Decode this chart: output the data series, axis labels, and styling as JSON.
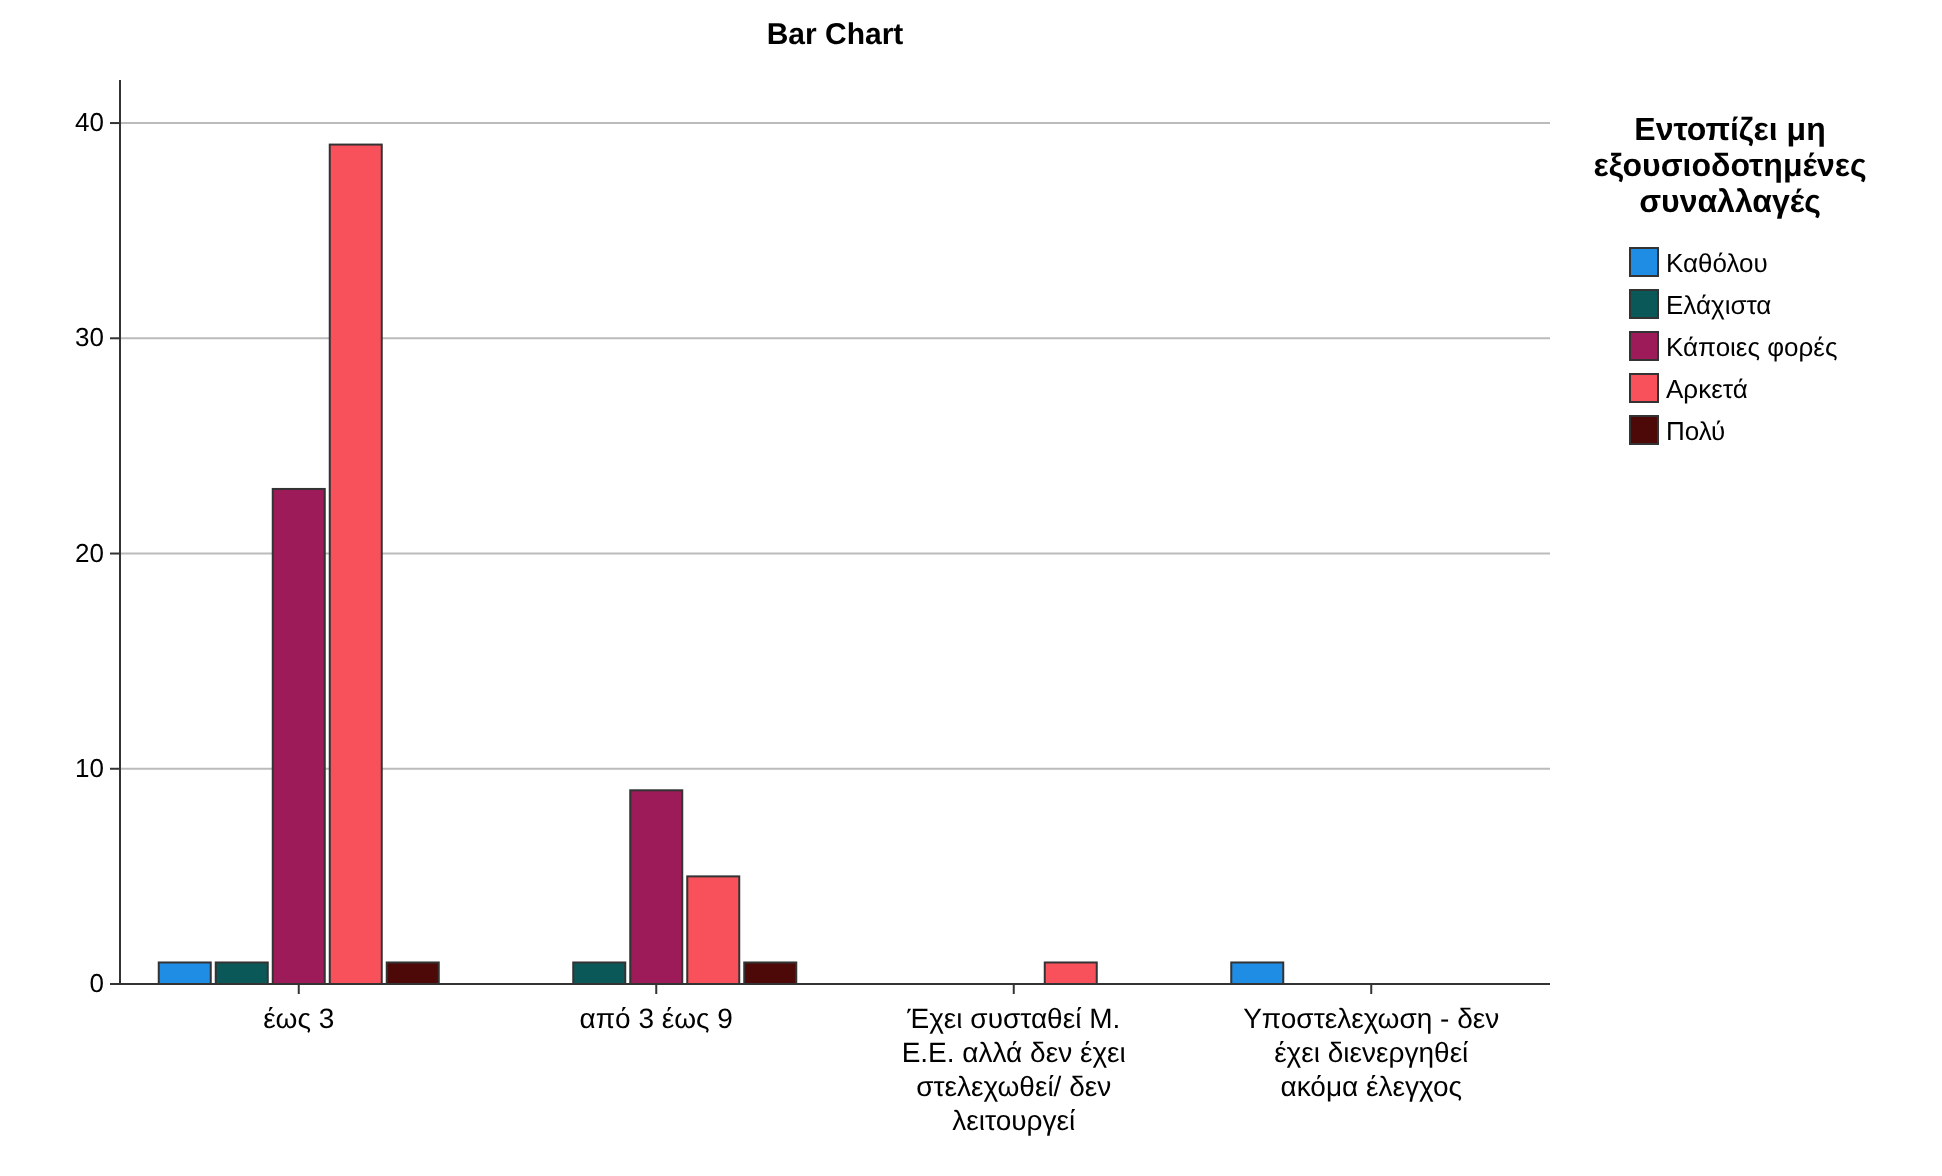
{
  "chart_data": {
    "type": "bar",
    "title": "Bar Chart",
    "legend_title": "Εντοπίζει μη εξουσιοδοτημένες συναλλαγές",
    "categories": [
      "έως 3",
      "από 3 έως 9",
      "Έχει συσταθεί Μ. Ε.Ε. αλλά δεν έχει στελεχωθεί/ δεν λειτουργεί",
      "Υποστελεχωση - δεν έχει διενεργηθεί ακόμα έλεγχος"
    ],
    "series": [
      {
        "name": "Καθόλου",
        "color": "#1f8de3",
        "values": [
          1,
          null,
          null,
          1
        ]
      },
      {
        "name": "Ελάχιστα",
        "color": "#0b5858",
        "values": [
          1,
          1,
          null,
          null
        ]
      },
      {
        "name": "Κάποιες φορές",
        "color": "#9c1b58",
        "values": [
          23,
          9,
          null,
          null
        ]
      },
      {
        "name": "Αρκετά",
        "color": "#f9515c",
        "values": [
          39,
          5,
          1,
          null
        ]
      },
      {
        "name": "Πολύ",
        "color": "#4d0808",
        "values": [
          1,
          1,
          null,
          null
        ]
      }
    ],
    "ylim": [
      0,
      42
    ],
    "yticks": [
      0,
      10,
      20,
      30,
      40
    ],
    "grid": "y",
    "legend": "right"
  }
}
